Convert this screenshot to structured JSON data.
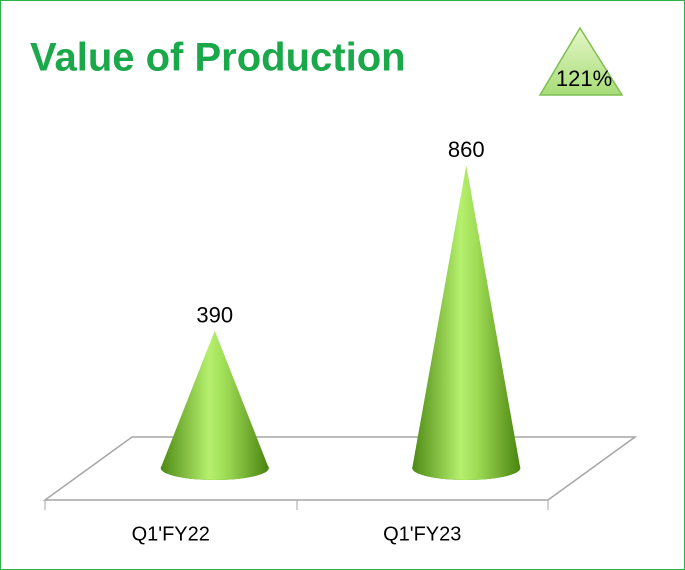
{
  "chart_data": {
    "type": "cone",
    "title": "Value of Production",
    "annotation": "121%",
    "categories": [
      "Q1'FY22",
      "Q1'FY23"
    ],
    "values": [
      390,
      860
    ],
    "color": "#7cbf35"
  }
}
